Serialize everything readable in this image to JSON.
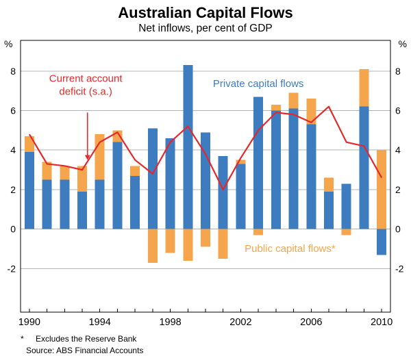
{
  "header": {
    "title": "Australian Capital Flows",
    "subtitle": "Net inflows, per cent of GDP"
  },
  "footer": {
    "footnote_marker": "*",
    "footnote": "Excludes the Reserve Bank",
    "source": "Source: ABS Financial Accounts"
  },
  "chart_data": {
    "type": "bar",
    "stacked": true,
    "title": "Australian Capital Flows",
    "subtitle": "Net inflows, per cent of GDP",
    "unit_left": "%",
    "unit_right": "%",
    "ylim": [
      -4.2,
      9.55
    ],
    "yticks": [
      -2,
      0,
      2,
      4,
      6,
      8
    ],
    "xticks": [
      1990,
      1994,
      1998,
      2002,
      2006,
      2010
    ],
    "years": [
      1990,
      1991,
      1992,
      1993,
      1994,
      1995,
      1996,
      1997,
      1998,
      1999,
      2000,
      2001,
      2002,
      2003,
      2004,
      2005,
      2006,
      2007,
      2008,
      2009,
      2010
    ],
    "bar_half": 7,
    "colors": {
      "grid": "#b3b3b3",
      "axis": "#000000",
      "background": "#ffffff"
    },
    "series": [
      {
        "name": "Private capital flows",
        "kind": "bar",
        "color": "#3d7cbe",
        "values": [
          3.9,
          2.5,
          2.5,
          1.9,
          2.5,
          4.4,
          2.7,
          5.1,
          4.6,
          8.3,
          4.9,
          3.7,
          3.3,
          6.7,
          6.0,
          6.1,
          5.3,
          1.9,
          2.3,
          6.2,
          -1.3
        ]
      },
      {
        "name": "Public capital flows*",
        "kind": "bar",
        "color": "#f5a54b",
        "values": [
          0.8,
          0.9,
          0.7,
          1.3,
          2.3,
          0.6,
          0.5,
          -1.7,
          -1.2,
          -1.6,
          -0.9,
          -1.5,
          0.2,
          -0.3,
          0.3,
          0.8,
          1.3,
          0.7,
          -0.3,
          1.9,
          4.0
        ]
      },
      {
        "name": "Current account deficit (s.a.)",
        "kind": "line",
        "color": "#e4282c",
        "values": [
          4.8,
          3.3,
          3.2,
          3.0,
          4.4,
          4.9,
          3.5,
          2.8,
          4.4,
          5.2,
          3.8,
          2.0,
          3.6,
          5.0,
          5.9,
          5.8,
          5.4,
          6.2,
          4.4,
          4.2,
          2.6
        ]
      }
    ],
    "annotations": [
      {
        "id": "cad-label",
        "lines": [
          "Current account",
          "deficit (s.a.)"
        ],
        "color": "#e4282c",
        "year": 1993.2,
        "value": 7.45,
        "arrow": {
          "year": 1993.3,
          "from": 5.9,
          "to": 3.5
        }
      },
      {
        "id": "private-label",
        "lines": [
          "Private capital flows"
        ],
        "color": "#3d7cbe",
        "year": 2003.0,
        "value": 7.2
      },
      {
        "id": "public-label",
        "lines": [
          "Public capital flows*"
        ],
        "color": "#f5a54b",
        "year": 2004.8,
        "value": -1.15
      }
    ],
    "grid": true,
    "legend_position": "inline-annotations"
  }
}
